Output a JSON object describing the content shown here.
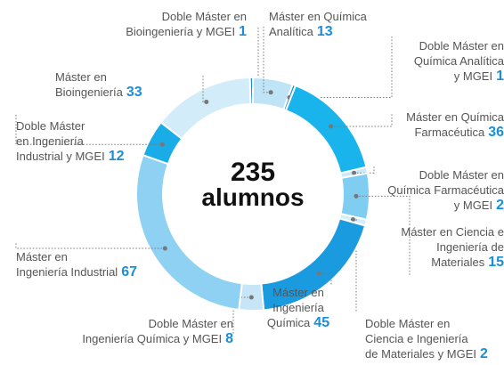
{
  "chart_data": {
    "type": "donut",
    "center_value": "235",
    "center_label": "alumnos",
    "categories": [
      "Doble Máster en\nBioingeniería y MGEI",
      "Máster en Química\nAnalítica",
      "Doble Máster en\nQuímica Analítica\ny MGEI",
      "Máster en Química\nFarmacéutica",
      "Doble Máster en\nQuímica Farmacéutica\ny MGEI",
      "Máster en Ciencia e\nIngeniería de\nMateriales",
      "Doble Máster en\nCiencia e Ingeniería\nde Materiales y MGEI",
      "Máster en\nIngeniería\nQuímica",
      "Doble Máster en\nIngeniería Química y MGEI",
      "Máster en\nIngeniería Industrial",
      "Doble Máster\nen Ingeniería\nIndustrial y MGEI",
      "Máster en\nBioingeniería"
    ],
    "values": [
      1,
      13,
      1,
      36,
      2,
      15,
      2,
      45,
      8,
      67,
      12,
      33
    ],
    "colors": [
      "#1a8fd8",
      "#bfe3f7",
      "#1a8fd8",
      "#19b4ec",
      "#cbe9f8",
      "#7fcdf0",
      "#d6eef9",
      "#1a9be0",
      "#c6e6f7",
      "#8ed1f2",
      "#1aace6",
      "#d2ecf9"
    ]
  }
}
